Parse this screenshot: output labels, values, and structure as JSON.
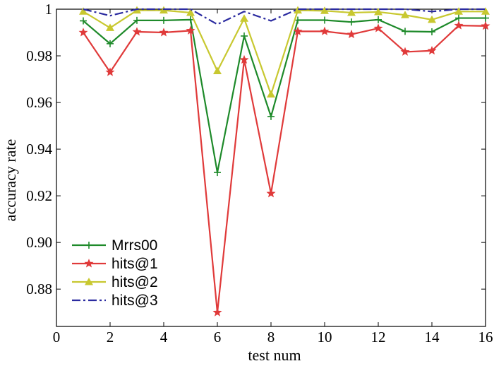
{
  "chart_data": {
    "type": "line",
    "xlabel": "test num",
    "ylabel": "accuracy rate",
    "xlim": [
      0,
      16
    ],
    "ylim": [
      0.864,
      1.0
    ],
    "x_ticks": [
      0,
      2,
      4,
      6,
      8,
      10,
      12,
      14,
      16
    ],
    "x_tick_labels": [
      "0",
      "2",
      "4",
      "6",
      "8",
      "10",
      "12",
      "14",
      "16"
    ],
    "y_ticks": [
      0.88,
      0.9,
      0.92,
      0.94,
      0.96,
      0.98,
      1.0
    ],
    "y_tick_labels": [
      "0.88",
      "0.90",
      "0.92",
      "0.94",
      "0.96",
      "0.98",
      "1"
    ],
    "grid": false,
    "legend_position": "bottom-left",
    "x": [
      1,
      2,
      3,
      4,
      5,
      6,
      7,
      8,
      9,
      10,
      11,
      12,
      13,
      14,
      15,
      16
    ],
    "series": [
      {
        "name": "Mrrs00",
        "color": "#1e8a2a",
        "marker": "plus",
        "dash": "solid",
        "values": [
          0.995,
          0.9852,
          0.9952,
          0.9952,
          0.9955,
          0.93,
          0.9885,
          0.954,
          0.9953,
          0.9953,
          0.9945,
          0.9955,
          0.9905,
          0.9903,
          0.9962,
          0.9962
        ]
      },
      {
        "name": "hits@1",
        "color": "#e03a3a",
        "marker": "star",
        "dash": "solid",
        "values": [
          0.99,
          0.973,
          0.9903,
          0.99,
          0.9908,
          0.87,
          0.9783,
          0.921,
          0.9905,
          0.9905,
          0.9892,
          0.9918,
          0.9817,
          0.9822,
          0.993,
          0.9928
        ]
      },
      {
        "name": "hits@2",
        "color": "#c8c830",
        "marker": "triangle",
        "dash": "solid",
        "values": [
          0.999,
          0.992,
          0.9995,
          0.9995,
          0.9985,
          0.9735,
          0.996,
          0.9635,
          0.9995,
          0.9993,
          0.9985,
          0.9988,
          0.9975,
          0.9955,
          0.999,
          0.999
        ]
      },
      {
        "name": "hits@3",
        "color": "#2b2ba0",
        "marker": "none",
        "dash": "dashdot",
        "values": [
          1.0,
          0.9972,
          1.0,
          1.0,
          1.0,
          0.9935,
          0.999,
          0.995,
          1.0,
          1.0,
          1.0,
          1.0,
          1.0,
          0.999,
          1.0,
          1.0
        ]
      }
    ]
  }
}
